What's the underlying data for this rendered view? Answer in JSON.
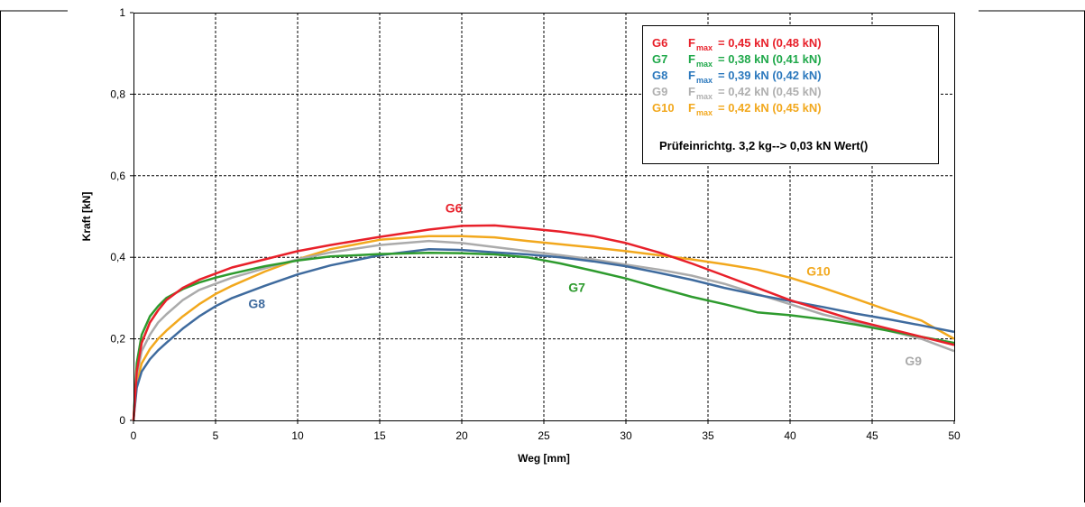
{
  "chart_data": {
    "type": "line",
    "xlabel": "Weg [mm]",
    "ylabel": "Kraft [kN]",
    "xlim": [
      0,
      50
    ],
    "ylim": [
      0,
      1
    ],
    "x_ticks": [
      "0",
      "5",
      "10",
      "15",
      "20",
      "25",
      "30",
      "35",
      "40",
      "45",
      "50"
    ],
    "y_ticks": [
      "0",
      "0,2",
      "0,4",
      "0,6",
      "0,8",
      "1"
    ],
    "grid": true,
    "legend_position": "top-right",
    "legend": {
      "entries": [
        {
          "name": "G6",
          "fmax": "F",
          "sub": "max",
          "value": "= 0,45 kN (0,48 kN)",
          "color": "#e8202a"
        },
        {
          "name": "G7",
          "fmax": "F",
          "sub": "max",
          "value": "= 0,38 kN (0,41 kN)",
          "color": "#1fa84a"
        },
        {
          "name": "G8",
          "fmax": "F",
          "sub": "max",
          "value": "= 0,39 kN (0,42 kN)",
          "color": "#2b78bd"
        },
        {
          "name": "G9",
          "fmax": "F",
          "sub": "max",
          "value": "= 0,42 kN (0,45 kN)",
          "color": "#b0b0b0"
        },
        {
          "name": "G10",
          "fmax": "F",
          "sub": "max",
          "value": "= 0,42 kN (0,45 kN)",
          "color": "#f2a81d"
        }
      ],
      "note": "Prüfeinrichtg. 3,2 kg--> 0,03 kN Wert()"
    },
    "series": [
      {
        "name": "G6",
        "color": "#e8202a",
        "label": "G6",
        "label_pos": [
          19.0,
          0.51
        ],
        "x": [
          0,
          0.2,
          0.5,
          1,
          1.5,
          2,
          3,
          4,
          5,
          6,
          8,
          10,
          12,
          15,
          18,
          20,
          22,
          24,
          26,
          28,
          30,
          32,
          34,
          36,
          38,
          40,
          42,
          44,
          46,
          48,
          50
        ],
        "y": [
          0,
          0.12,
          0.19,
          0.24,
          0.27,
          0.295,
          0.325,
          0.345,
          0.36,
          0.375,
          0.395,
          0.415,
          0.43,
          0.45,
          0.468,
          0.477,
          0.478,
          0.471,
          0.463,
          0.452,
          0.435,
          0.412,
          0.385,
          0.355,
          0.325,
          0.295,
          0.27,
          0.245,
          0.225,
          0.205,
          0.185
        ]
      },
      {
        "name": "G7",
        "color": "#2e9b2e",
        "label": "G7",
        "label_pos": [
          26.5,
          0.315
        ],
        "x": [
          0,
          0.2,
          0.5,
          1,
          1.5,
          2,
          3,
          4,
          5,
          6,
          8,
          10,
          12,
          15,
          18,
          20,
          22,
          24,
          26,
          28,
          30,
          32,
          34,
          36,
          38,
          40,
          42,
          44,
          46,
          48,
          50
        ],
        "y": [
          0,
          0.14,
          0.21,
          0.255,
          0.28,
          0.3,
          0.322,
          0.338,
          0.35,
          0.36,
          0.378,
          0.392,
          0.402,
          0.408,
          0.411,
          0.41,
          0.407,
          0.4,
          0.385,
          0.367,
          0.348,
          0.325,
          0.303,
          0.285,
          0.265,
          0.258,
          0.248,
          0.235,
          0.22,
          0.205,
          0.19
        ]
      },
      {
        "name": "G8",
        "color": "#3f6b9e",
        "label": "G8",
        "label_pos": [
          7.0,
          0.275
        ],
        "x": [
          0,
          0.2,
          0.5,
          1,
          1.5,
          2,
          3,
          4,
          5,
          6,
          8,
          10,
          12,
          15,
          18,
          20,
          22,
          24,
          26,
          28,
          30,
          32,
          34,
          36,
          38,
          40,
          42,
          44,
          46,
          48,
          50
        ],
        "y": [
          0,
          0.08,
          0.12,
          0.15,
          0.172,
          0.19,
          0.225,
          0.255,
          0.28,
          0.3,
          0.33,
          0.358,
          0.38,
          0.405,
          0.42,
          0.418,
          0.412,
          0.407,
          0.4,
          0.39,
          0.378,
          0.362,
          0.345,
          0.325,
          0.308,
          0.293,
          0.278,
          0.262,
          0.248,
          0.233,
          0.217
        ]
      },
      {
        "name": "G9",
        "color": "#ababab",
        "label": "G9",
        "label_pos": [
          47.0,
          0.135
        ],
        "x": [
          0,
          0.2,
          0.5,
          1,
          1.5,
          2,
          3,
          4,
          5,
          6,
          8,
          10,
          12,
          15,
          18,
          20,
          22,
          24,
          26,
          28,
          30,
          32,
          34,
          36,
          38,
          40,
          42,
          44,
          46,
          48,
          50
        ],
        "y": [
          0,
          0.11,
          0.17,
          0.21,
          0.24,
          0.26,
          0.295,
          0.32,
          0.335,
          0.35,
          0.373,
          0.395,
          0.412,
          0.43,
          0.44,
          0.435,
          0.425,
          0.415,
          0.405,
          0.395,
          0.382,
          0.37,
          0.355,
          0.335,
          0.31,
          0.285,
          0.26,
          0.24,
          0.22,
          0.2,
          0.17
        ]
      },
      {
        "name": "G10",
        "color": "#f2a81d",
        "label": "G10",
        "label_pos": [
          41.0,
          0.355
        ],
        "x": [
          0,
          0.2,
          0.5,
          1,
          1.5,
          2,
          3,
          4,
          5,
          6,
          8,
          10,
          12,
          15,
          18,
          20,
          22,
          24,
          26,
          28,
          30,
          32,
          34,
          36,
          38,
          40,
          42,
          44,
          46,
          48,
          50
        ],
        "y": [
          0,
          0.09,
          0.14,
          0.175,
          0.2,
          0.22,
          0.255,
          0.285,
          0.31,
          0.33,
          0.365,
          0.395,
          0.42,
          0.443,
          0.452,
          0.452,
          0.449,
          0.44,
          0.432,
          0.424,
          0.415,
          0.405,
          0.395,
          0.383,
          0.37,
          0.35,
          0.325,
          0.298,
          0.27,
          0.245,
          0.2
        ]
      }
    ]
  }
}
